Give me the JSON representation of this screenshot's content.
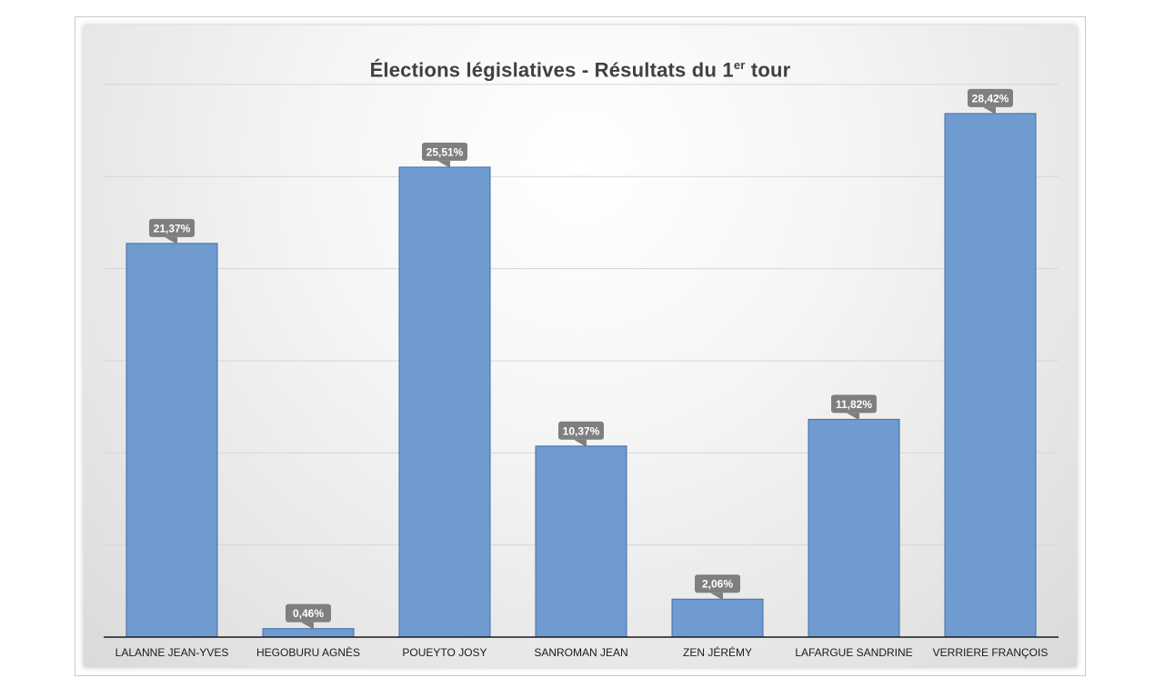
{
  "chart_data": {
    "type": "bar",
    "title": {
      "main": "Élections législatives - Résultats du 1",
      "superscript": "er",
      "end": " tour"
    },
    "categories": [
      "LALANNE JEAN-YVES",
      "HEGOBURU AGNÈS",
      "POUEYTO JOSY",
      "SANROMAN JEAN",
      "ZEN JÉRÉMY",
      "LAFARGUE SANDRINE",
      "VERRIERE FRANÇOIS"
    ],
    "values": [
      21.37,
      0.46,
      25.51,
      10.37,
      2.06,
      11.82,
      28.42
    ],
    "data_labels": [
      "21,37%",
      "0,46%",
      "25,51%",
      "10,37%",
      "2,06%",
      "11,82%",
      "28,42%"
    ],
    "ylim": [
      0,
      30
    ],
    "grid": true,
    "legend": "none",
    "xlabel": "",
    "ylabel": "",
    "colors": {
      "bar_fill": "#6f9bd0",
      "bar_border": "#3f6fa8",
      "label_background": "#7f7f7f"
    }
  }
}
